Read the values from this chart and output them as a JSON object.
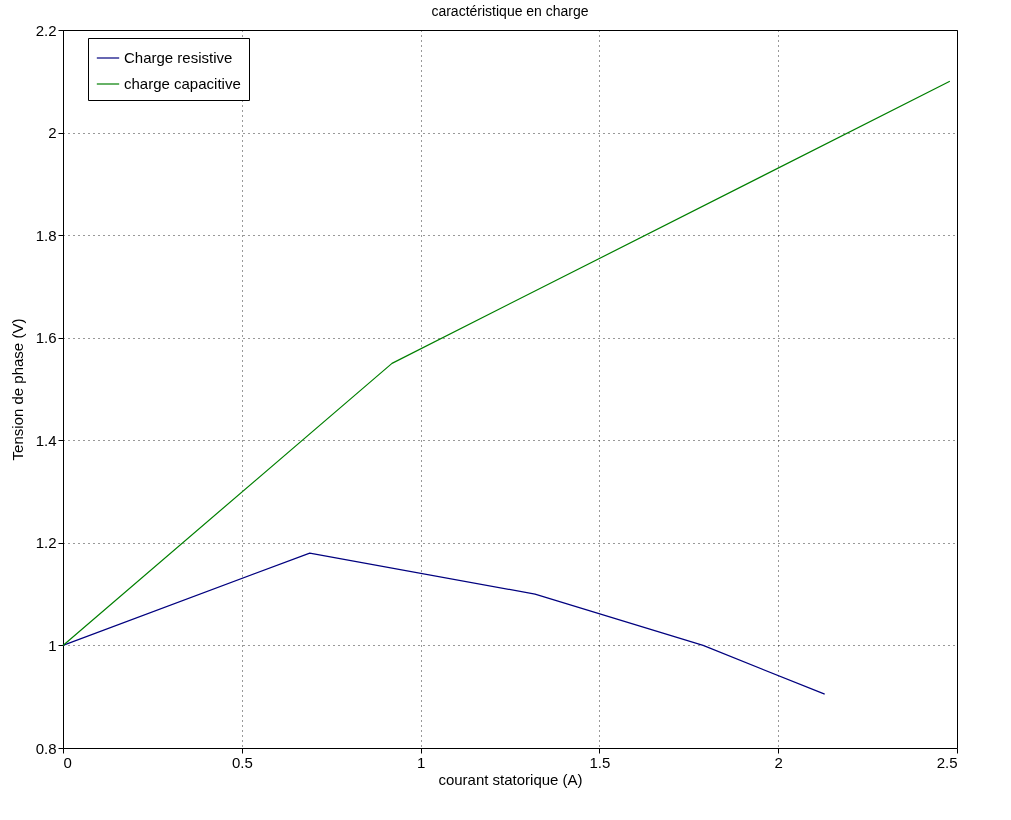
{
  "chart_data": {
    "type": "line",
    "title": "caractéristique en charge",
    "xlabel": "courant statorique (A)",
    "ylabel": "Tension de phase (V)",
    "series": [
      {
        "name": "Charge resistive",
        "color": "#00007f",
        "x": [
          0,
          0.69,
          1.32,
          1.79,
          2.13
        ],
        "values": [
          1.0,
          1.18,
          1.1,
          1.0,
          0.905
        ]
      },
      {
        "name": "charge capacitive",
        "color": "#007f00",
        "x": [
          0,
          0.92,
          2.48
        ],
        "values": [
          1.0,
          1.55,
          2.1
        ]
      }
    ],
    "xlim": [
      0,
      2.5
    ],
    "xticks": [
      0,
      0.5,
      1,
      1.5,
      2,
      2.5
    ],
    "ylim": [
      0.8,
      2.2
    ],
    "yticks": [
      0.8,
      1,
      1.2,
      1.4,
      1.6,
      1.8,
      2,
      2.2
    ],
    "grid": true,
    "legend": "top left",
    "marker": "none",
    "line_style": "solid"
  }
}
